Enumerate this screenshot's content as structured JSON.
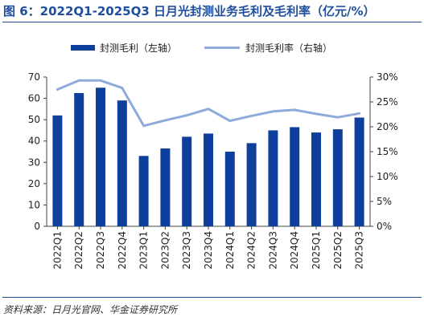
{
  "figure": {
    "title": "图 6：2022Q1-2025Q3 日月光封测业务毛利及毛利率（亿元/%）",
    "source": "资料来源：日月光官网、华金证券研究所"
  },
  "chart_data": {
    "type": "bar",
    "categories": [
      "2022Q1",
      "2022Q2",
      "2022Q3",
      "2022Q4",
      "2023Q1",
      "2023Q2",
      "2023Q3",
      "2023Q4",
      "2024Q1",
      "2024Q2",
      "2024Q3",
      "2024Q4",
      "2025Q1",
      "2025Q2",
      "2025Q3"
    ],
    "series": [
      {
        "name": "封测毛利（左轴）",
        "type": "bar",
        "axis": "left",
        "color": "#0f3f9c",
        "values": [
          52,
          62.5,
          65,
          59,
          33,
          36.5,
          42,
          43.5,
          35,
          39,
          45,
          46.5,
          44,
          45.5,
          51
        ]
      },
      {
        "name": "封测毛利率（右轴）",
        "type": "line",
        "axis": "right",
        "color": "#8eaadb",
        "values": [
          27.5,
          29.3,
          29.3,
          27.8,
          20.2,
          21.3,
          22.3,
          23.6,
          21.2,
          22.2,
          23.1,
          23.4,
          22.6,
          21.9,
          22.7
        ]
      }
    ],
    "y_left": {
      "min": 0,
      "max": 70,
      "step": 10,
      "ticks": [
        "0",
        "10",
        "20",
        "30",
        "40",
        "50",
        "60",
        "70"
      ]
    },
    "y_right": {
      "min": 0,
      "max": 30,
      "step": 5,
      "ticks": [
        "0%",
        "5%",
        "10%",
        "15%",
        "20%",
        "25%",
        "30%"
      ]
    },
    "legend": {
      "position": "top",
      "entries": [
        "封测毛利（左轴）",
        "封测毛利率（右轴）"
      ]
    },
    "grid": false
  }
}
